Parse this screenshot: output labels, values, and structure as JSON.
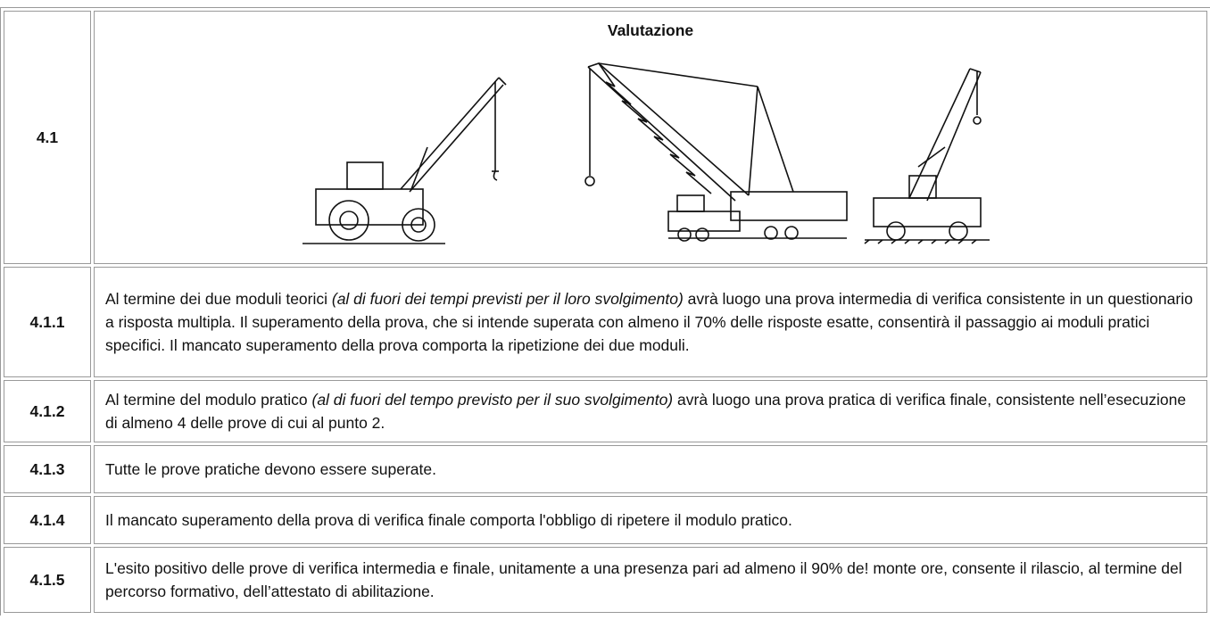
{
  "table": {
    "rows": [
      {
        "number": "4.1",
        "title": "Valutazione"
      },
      {
        "number": "4.1.1",
        "text_before": "Al termine dei due moduli teorici ",
        "text_italic": "(al di fuori dei tempi previsti per il loro svolgimento)",
        "text_after": " avrà luogo una prova intermedia di verifica consistente in un questionario a risposta multipla. Il superamento della prova, che si intende superata con almeno il 70% delle risposte esatte, consentirà il passaggio ai moduli pratici specifici. Il mancato superamento della prova comporta la ripetizione dei due moduli."
      },
      {
        "number": "4.1.2",
        "text_before": "Al termine del modulo pratico ",
        "text_italic": "(al di fuori del tempo previsto per il suo svolgimento)",
        "text_after": " avrà luogo una prova pratica di verifica finale, consistente nell’esecuzione di almeno 4 delle prove di cui al punto 2."
      },
      {
        "number": "4.1.3",
        "text_before": "Tutte le prove pratiche devono essere superate."
      },
      {
        "number": "4.1.4",
        "text_before": "Il mancato superamento della prova di verifica finale comporta l'obbligo di ripetere il modulo pratico."
      },
      {
        "number": "4.1.5",
        "text_before": "L'esito positivo delle prove di verifica intermedia e finale, unitamente a una presenza pari ad almeno il 90% de! monte ore, consente il rilascio, al termine del percorso formativo, dell’attestato di abilitazione."
      }
    ]
  }
}
